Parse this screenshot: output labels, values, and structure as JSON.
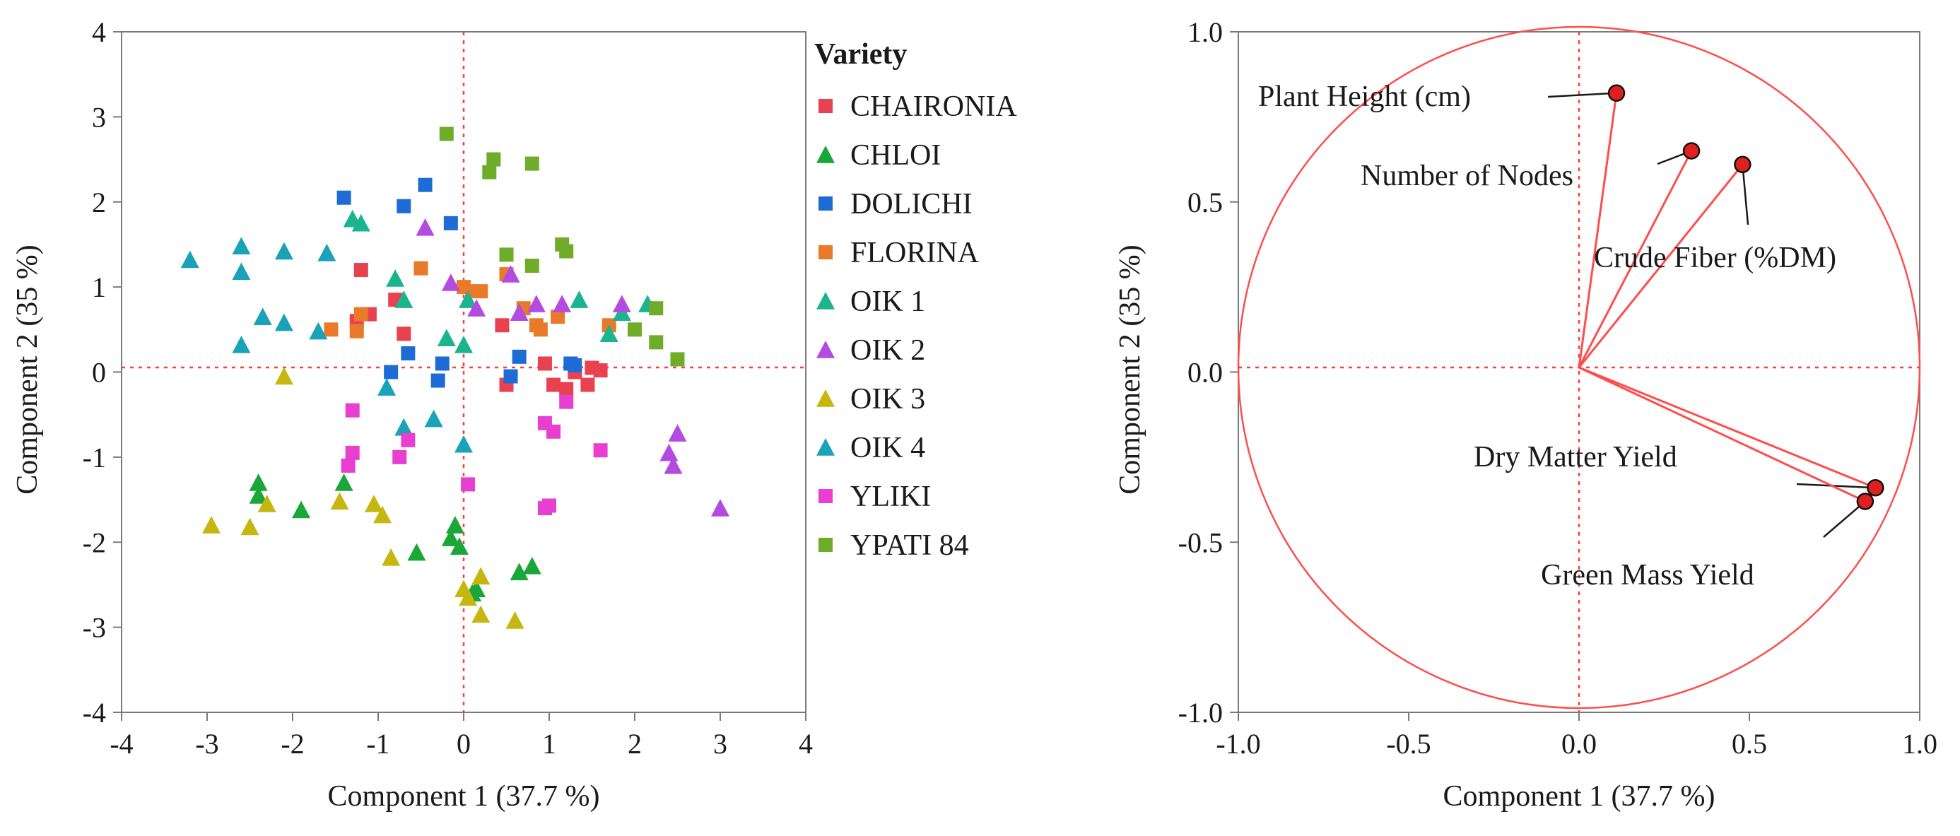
{
  "chart_data": [
    {
      "type": "scatter",
      "title": "",
      "xlabel": "Component 1  (37.7 %)",
      "ylabel": "Component 2  (35 %)",
      "xlim": [
        -4,
        4
      ],
      "ylim": [
        -4,
        4
      ],
      "xticks": [
        "-4",
        "-3",
        "-2",
        "-1",
        "0",
        "1",
        "2",
        "3",
        "4"
      ],
      "yticks": [
        "4",
        "3",
        "2",
        "1",
        "0",
        "-1",
        "-2",
        "-3",
        "-4"
      ],
      "grid": false,
      "reference_lines": {
        "x": 0,
        "y": 0
      },
      "legend": {
        "title": "Variety",
        "placement": "right"
      },
      "series": [
        {
          "name": "CHAIRONIA",
          "marker": "square",
          "color": "#e8414f",
          "points": [
            [
              -1.2,
              1.2
            ],
            [
              -1.25,
              0.6
            ],
            [
              -1.1,
              0.68
            ],
            [
              -0.8,
              0.85
            ],
            [
              -0.7,
              0.45
            ],
            [
              0.45,
              0.55
            ],
            [
              0.5,
              -0.15
            ],
            [
              1.05,
              -0.15
            ],
            [
              1.2,
              -0.2
            ],
            [
              1.3,
              0.0
            ],
            [
              1.45,
              -0.15
            ],
            [
              1.5,
              0.05
            ],
            [
              1.6,
              0.02
            ],
            [
              0.95,
              0.1
            ]
          ]
        },
        {
          "name": "CHLOI",
          "marker": "triangle",
          "color": "#1aa73a",
          "points": [
            [
              -2.4,
              -1.3
            ],
            [
              -2.4,
              -1.45
            ],
            [
              -1.9,
              -1.62
            ],
            [
              -1.4,
              -1.3
            ],
            [
              -0.55,
              -2.12
            ],
            [
              -0.1,
              -1.8
            ],
            [
              -0.15,
              -1.95
            ],
            [
              -0.05,
              -2.05
            ],
            [
              0.1,
              -2.6
            ],
            [
              0.15,
              -2.55
            ],
            [
              0.65,
              -2.35
            ],
            [
              0.8,
              -2.28
            ]
          ]
        },
        {
          "name": "DOLICHI",
          "marker": "square",
          "color": "#1f6bd6",
          "points": [
            [
              -1.4,
              2.05
            ],
            [
              -0.7,
              1.95
            ],
            [
              -0.45,
              2.2
            ],
            [
              -0.15,
              1.75
            ],
            [
              -0.85,
              0.0
            ],
            [
              -0.65,
              0.22
            ],
            [
              -0.25,
              0.1
            ],
            [
              -0.3,
              -0.1
            ],
            [
              0.55,
              -0.05
            ],
            [
              0.65,
              0.18
            ],
            [
              1.25,
              0.1
            ],
            [
              1.3,
              0.08
            ]
          ]
        },
        {
          "name": "FLORINA",
          "marker": "square",
          "color": "#e87a2a",
          "points": [
            [
              -1.55,
              0.5
            ],
            [
              -1.25,
              0.48
            ],
            [
              -1.2,
              0.68
            ],
            [
              -0.5,
              1.22
            ],
            [
              0.0,
              1.0
            ],
            [
              0.1,
              0.95
            ],
            [
              0.2,
              0.95
            ],
            [
              0.5,
              1.15
            ],
            [
              0.7,
              0.75
            ],
            [
              0.85,
              0.55
            ],
            [
              0.9,
              0.5
            ],
            [
              1.1,
              0.65
            ],
            [
              1.7,
              0.55
            ]
          ]
        },
        {
          "name": "OIK 1",
          "marker": "triangle",
          "color": "#1ab58f",
          "points": [
            [
              -1.3,
              1.8
            ],
            [
              -1.2,
              1.75
            ],
            [
              -0.8,
              1.1
            ],
            [
              -0.7,
              0.85
            ],
            [
              -0.2,
              0.4
            ],
            [
              0.0,
              0.32
            ],
            [
              0.05,
              0.85
            ],
            [
              1.35,
              0.85
            ],
            [
              1.7,
              0.45
            ],
            [
              1.85,
              0.7
            ],
            [
              2.15,
              0.8
            ]
          ]
        },
        {
          "name": "OIK 2",
          "marker": "triangle",
          "color": "#b44be0",
          "points": [
            [
              -0.45,
              1.7
            ],
            [
              -0.15,
              1.05
            ],
            [
              0.15,
              0.75
            ],
            [
              0.55,
              1.15
            ],
            [
              0.65,
              0.7
            ],
            [
              0.85,
              0.8
            ],
            [
              1.15,
              0.8
            ],
            [
              1.85,
              0.8
            ],
            [
              2.4,
              -0.95
            ],
            [
              2.45,
              -1.1
            ],
            [
              2.5,
              -0.72
            ],
            [
              3.0,
              -1.6
            ]
          ]
        },
        {
          "name": "OIK 3",
          "marker": "triangle",
          "color": "#c6b710",
          "points": [
            [
              -2.95,
              -1.8
            ],
            [
              -2.5,
              -1.82
            ],
            [
              -2.3,
              -1.55
            ],
            [
              -2.1,
              -0.05
            ],
            [
              -1.45,
              -1.52
            ],
            [
              -1.05,
              -1.55
            ],
            [
              -0.95,
              -1.68
            ],
            [
              -0.85,
              -2.18
            ],
            [
              0.0,
              -2.55
            ],
            [
              0.05,
              -2.65
            ],
            [
              0.2,
              -2.4
            ],
            [
              0.2,
              -2.85
            ],
            [
              0.6,
              -2.92
            ]
          ]
        },
        {
          "name": "OIK 4",
          "marker": "triangle",
          "color": "#1aa2b8",
          "points": [
            [
              -3.2,
              1.32
            ],
            [
              -2.6,
              1.48
            ],
            [
              -2.6,
              1.18
            ],
            [
              -2.6,
              0.32
            ],
            [
              -2.35,
              0.65
            ],
            [
              -2.1,
              1.42
            ],
            [
              -2.1,
              0.58
            ],
            [
              -1.7,
              0.48
            ],
            [
              -1.6,
              1.4
            ],
            [
              -0.9,
              -0.18
            ],
            [
              -0.7,
              -0.65
            ],
            [
              -0.35,
              -0.55
            ],
            [
              0.0,
              -0.85
            ]
          ]
        },
        {
          "name": "YLIKI",
          "marker": "square",
          "color": "#e83fd0",
          "points": [
            [
              -1.3,
              -0.45
            ],
            [
              -1.3,
              -0.95
            ],
            [
              -1.35,
              -1.1
            ],
            [
              -0.75,
              -1.0
            ],
            [
              -0.65,
              -0.8
            ],
            [
              0.05,
              -1.32
            ],
            [
              0.95,
              -0.6
            ],
            [
              1.05,
              -0.7
            ],
            [
              0.95,
              -1.6
            ],
            [
              1.0,
              -1.57
            ],
            [
              1.2,
              -0.35
            ],
            [
              1.6,
              -0.92
            ]
          ]
        },
        {
          "name": "YPATI 84",
          "marker": "square",
          "color": "#6fac2a",
          "points": [
            [
              -0.2,
              2.8
            ],
            [
              0.3,
              2.35
            ],
            [
              0.35,
              2.5
            ],
            [
              0.8,
              2.45
            ],
            [
              0.5,
              1.38
            ],
            [
              0.8,
              1.25
            ],
            [
              1.15,
              1.5
            ],
            [
              1.2,
              1.42
            ],
            [
              2.0,
              0.5
            ],
            [
              2.25,
              0.75
            ],
            [
              2.25,
              0.35
            ],
            [
              2.5,
              0.15
            ]
          ]
        }
      ]
    },
    {
      "type": "scatter",
      "subtype": "loading-plot",
      "title": "",
      "xlabel": "Component 1  (37.7 %)",
      "ylabel": "Component 2  (35 %)",
      "xlim": [
        -1.0,
        1.0
      ],
      "ylim": [
        -1.0,
        1.0
      ],
      "xticks": [
        "-1.0",
        "-0.5",
        "0.0",
        "0.5",
        "1.0"
      ],
      "yticks": [
        "1.0",
        "0.5",
        "0.0",
        "-0.5",
        "-1.0"
      ],
      "grid": false,
      "unit_circle": true,
      "reference_lines": {
        "x": 0,
        "y": 0
      },
      "vector_color": "#ff4d4d",
      "point_color": "#e01f1f",
      "loadings": [
        {
          "label": "Plant Height (cm)",
          "x": 0.11,
          "y": 0.82
        },
        {
          "label": "Number of Nodes",
          "x": 0.33,
          "y": 0.65
        },
        {
          "label": "Crude Fiber (%DM)",
          "x": 0.48,
          "y": 0.61
        },
        {
          "label": "Dry Matter Yield",
          "x": 0.87,
          "y": -0.34
        },
        {
          "label": "Green Mass Yield",
          "x": 0.84,
          "y": -0.38
        }
      ]
    }
  ]
}
